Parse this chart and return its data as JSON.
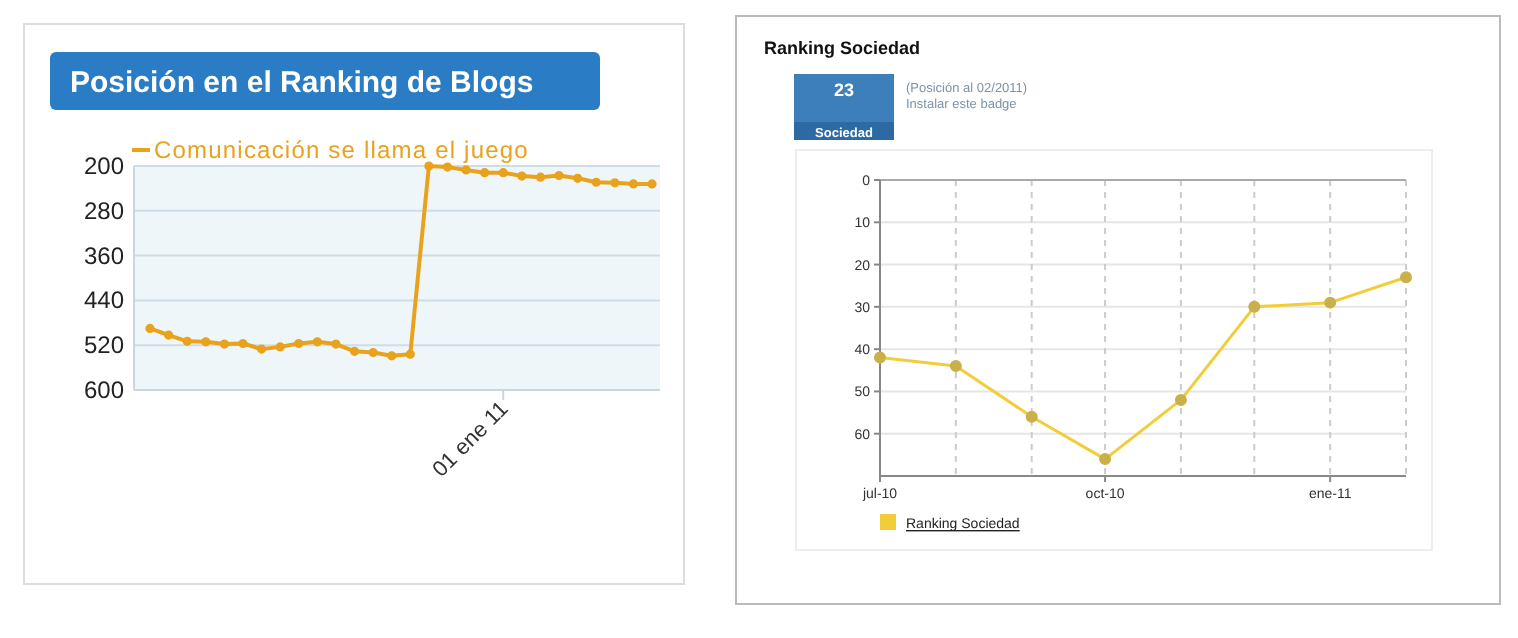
{
  "chart_data": [
    {
      "type": "line",
      "title": "Posición en el Ranking de Blogs",
      "categories": [
        null,
        null,
        null,
        null,
        null,
        null,
        null,
        null,
        null,
        null,
        null,
        null,
        null,
        null,
        null,
        null,
        null,
        null,
        null,
        "01 ene 11",
        null,
        null,
        null,
        null,
        null,
        null,
        null,
        null
      ],
      "series": [
        {
          "name": "Comunicación se llama el juego",
          "color": "#e9a21c",
          "values": [
            490,
            502,
            513,
            514,
            518,
            517,
            527,
            523,
            517,
            514,
            518,
            531,
            533,
            539,
            536,
            200,
            202,
            207,
            212,
            212,
            218,
            220,
            217,
            222,
            229,
            230,
            232,
            232
          ]
        }
      ],
      "ylim": [
        600,
        200
      ],
      "yticks": [
        200,
        280,
        360,
        440,
        520,
        600
      ],
      "grid": "y",
      "legend": "top left",
      "marker": "circle"
    },
    {
      "type": "line",
      "title": "Ranking Sociedad",
      "annotations": [
        "23",
        "Sociedad",
        "(Posición al 02/2011)",
        "Instalar este badge"
      ],
      "x": [
        "2010-07",
        "2010-08",
        "2010-09",
        "2010-10",
        "2010-11",
        "2010-12",
        "2011-01",
        "2011-02"
      ],
      "series": [
        {
          "name": "Ranking Sociedad",
          "color": "#f2cd3a",
          "values": [
            42,
            44,
            56,
            66,
            52,
            30,
            29,
            23
          ]
        }
      ],
      "xlim": [
        "2010-07",
        "2011-02"
      ],
      "xticks": [
        {
          "value": "2010-07",
          "label": "jul-10"
        },
        {
          "value": "2010-08",
          "label": null
        },
        {
          "value": "2010-09",
          "label": null
        },
        {
          "value": "2010-10",
          "label": "oct-10"
        },
        {
          "value": "2010-11",
          "label": null
        },
        {
          "value": "2010-12",
          "label": null
        },
        {
          "value": "2011-01",
          "label": "ene-11"
        },
        {
          "value": "2011-02",
          "label": null
        }
      ],
      "ylim": [
        70,
        0
      ],
      "yticks": [
        0,
        10,
        20,
        30,
        40,
        50,
        60
      ],
      "grid": true,
      "legend": "bottom left",
      "marker": "circle"
    }
  ]
}
